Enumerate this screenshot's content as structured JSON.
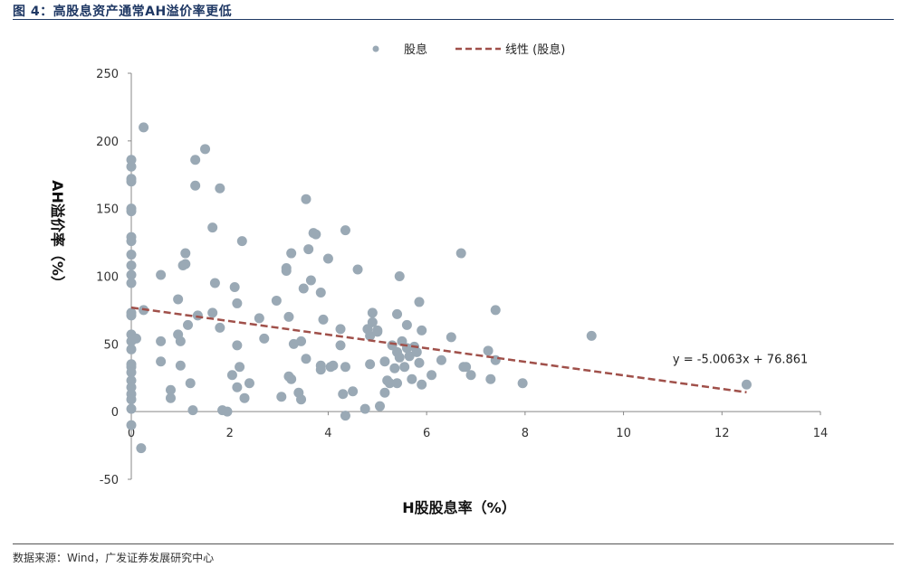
{
  "header": {
    "title": "图 4：高股息资产通常AH溢价率更低"
  },
  "footer": {
    "source": "数据来源：Wind，广发证券发展研究中心"
  },
  "colors": {
    "point": "#9aa9b5",
    "trend": "#a0504a",
    "title": "#1f3864"
  },
  "chart_data": {
    "type": "scatter",
    "title": "",
    "xlabel": "H股股息率（%）",
    "ylabel": "AH溢价率（%）",
    "xlim": [
      0,
      14
    ],
    "ylim": [
      -50,
      250
    ],
    "xticks": [
      0,
      2,
      4,
      6,
      8,
      10,
      12,
      14
    ],
    "yticks": [
      -50,
      0,
      50,
      100,
      150,
      200,
      250
    ],
    "grid": false,
    "legend_position": "top-center",
    "series": [
      {
        "name": "股息",
        "points": [
          [
            0,
            186
          ],
          [
            0,
            181
          ],
          [
            0,
            172
          ],
          [
            0,
            170
          ],
          [
            0,
            150
          ],
          [
            0,
            148
          ],
          [
            0,
            129
          ],
          [
            0,
            126
          ],
          [
            0,
            116
          ],
          [
            0,
            108
          ],
          [
            0,
            101
          ],
          [
            0,
            95
          ],
          [
            0,
            73
          ],
          [
            0,
            71
          ],
          [
            0,
            57
          ],
          [
            0,
            52
          ],
          [
            0,
            46
          ],
          [
            0,
            35
          ],
          [
            0,
            33
          ],
          [
            0,
            29
          ],
          [
            0,
            23
          ],
          [
            0,
            18
          ],
          [
            0,
            13
          ],
          [
            0,
            9
          ],
          [
            0,
            2
          ],
          [
            0,
            -10
          ],
          [
            0.1,
            54
          ],
          [
            0.25,
            210
          ],
          [
            0.25,
            75
          ],
          [
            0.2,
            -27
          ],
          [
            0.6,
            101
          ],
          [
            0.6,
            52
          ],
          [
            0.6,
            37
          ],
          [
            0.8,
            16
          ],
          [
            0.8,
            10
          ],
          [
            0.95,
            83
          ],
          [
            0.95,
            57
          ],
          [
            1.0,
            52
          ],
          [
            1.0,
            34
          ],
          [
            1.05,
            108
          ],
          [
            1.1,
            109
          ],
          [
            1.1,
            117
          ],
          [
            1.15,
            64
          ],
          [
            1.2,
            21
          ],
          [
            1.25,
            1
          ],
          [
            1.3,
            167
          ],
          [
            1.3,
            186
          ],
          [
            1.35,
            71
          ],
          [
            1.5,
            194
          ],
          [
            1.65,
            136
          ],
          [
            1.65,
            73
          ],
          [
            1.7,
            95
          ],
          [
            1.8,
            165
          ],
          [
            1.8,
            62
          ],
          [
            1.85,
            1
          ],
          [
            1.95,
            0
          ],
          [
            2.05,
            27
          ],
          [
            2.1,
            92
          ],
          [
            2.15,
            80
          ],
          [
            2.15,
            49
          ],
          [
            2.15,
            18
          ],
          [
            2.2,
            33
          ],
          [
            2.25,
            126
          ],
          [
            2.3,
            10
          ],
          [
            2.4,
            21
          ],
          [
            2.6,
            69
          ],
          [
            2.7,
            54
          ],
          [
            2.95,
            82
          ],
          [
            3.05,
            11
          ],
          [
            3.15,
            106
          ],
          [
            3.15,
            104
          ],
          [
            3.2,
            70
          ],
          [
            3.2,
            26
          ],
          [
            3.25,
            117
          ],
          [
            3.25,
            24
          ],
          [
            3.3,
            50
          ],
          [
            3.4,
            14
          ],
          [
            3.45,
            9
          ],
          [
            3.45,
            52
          ],
          [
            3.5,
            91
          ],
          [
            3.55,
            157
          ],
          [
            3.55,
            39
          ],
          [
            3.6,
            120
          ],
          [
            3.65,
            97
          ],
          [
            3.7,
            132
          ],
          [
            3.75,
            131
          ],
          [
            3.85,
            88
          ],
          [
            3.85,
            34
          ],
          [
            3.85,
            31
          ],
          [
            3.9,
            68
          ],
          [
            4.0,
            113
          ],
          [
            4.05,
            33
          ],
          [
            4.1,
            34
          ],
          [
            4.25,
            61
          ],
          [
            4.25,
            49
          ],
          [
            4.3,
            13
          ],
          [
            4.35,
            33
          ],
          [
            4.35,
            134
          ],
          [
            4.35,
            -3
          ],
          [
            4.5,
            15
          ],
          [
            4.6,
            105
          ],
          [
            4.75,
            2
          ],
          [
            4.8,
            61
          ],
          [
            4.85,
            56
          ],
          [
            4.85,
            35
          ],
          [
            4.9,
            73
          ],
          [
            4.9,
            66
          ],
          [
            5.0,
            60
          ],
          [
            5.0,
            59
          ],
          [
            5.05,
            4
          ],
          [
            5.15,
            37
          ],
          [
            5.15,
            14
          ],
          [
            5.2,
            23
          ],
          [
            5.25,
            21
          ],
          [
            5.3,
            49
          ],
          [
            5.35,
            32
          ],
          [
            5.4,
            72
          ],
          [
            5.4,
            44
          ],
          [
            5.4,
            21
          ],
          [
            5.45,
            100
          ],
          [
            5.45,
            40
          ],
          [
            5.5,
            52
          ],
          [
            5.55,
            33
          ],
          [
            5.6,
            64
          ],
          [
            5.6,
            47
          ],
          [
            5.65,
            41
          ],
          [
            5.7,
            24
          ],
          [
            5.75,
            48
          ],
          [
            5.8,
            44
          ],
          [
            5.85,
            36
          ],
          [
            5.85,
            81
          ],
          [
            5.9,
            20
          ],
          [
            5.9,
            60
          ],
          [
            6.1,
            27
          ],
          [
            6.3,
            38
          ],
          [
            6.5,
            55
          ],
          [
            6.7,
            117
          ],
          [
            6.75,
            33
          ],
          [
            6.8,
            33
          ],
          [
            6.9,
            27
          ],
          [
            7.25,
            45
          ],
          [
            7.3,
            24
          ],
          [
            7.4,
            75
          ],
          [
            7.4,
            38
          ],
          [
            7.95,
            21
          ],
          [
            9.35,
            56
          ],
          [
            12.5,
            20
          ]
        ]
      },
      {
        "name": "线性 (股息)",
        "kind": "trendline",
        "slope": -5.0063,
        "intercept": 76.861,
        "x_range": [
          0,
          12.5
        ]
      }
    ],
    "annotations": [
      {
        "text": "y = -5.0063x + 76.861",
        "x": 11.0,
        "y": 36
      }
    ]
  }
}
